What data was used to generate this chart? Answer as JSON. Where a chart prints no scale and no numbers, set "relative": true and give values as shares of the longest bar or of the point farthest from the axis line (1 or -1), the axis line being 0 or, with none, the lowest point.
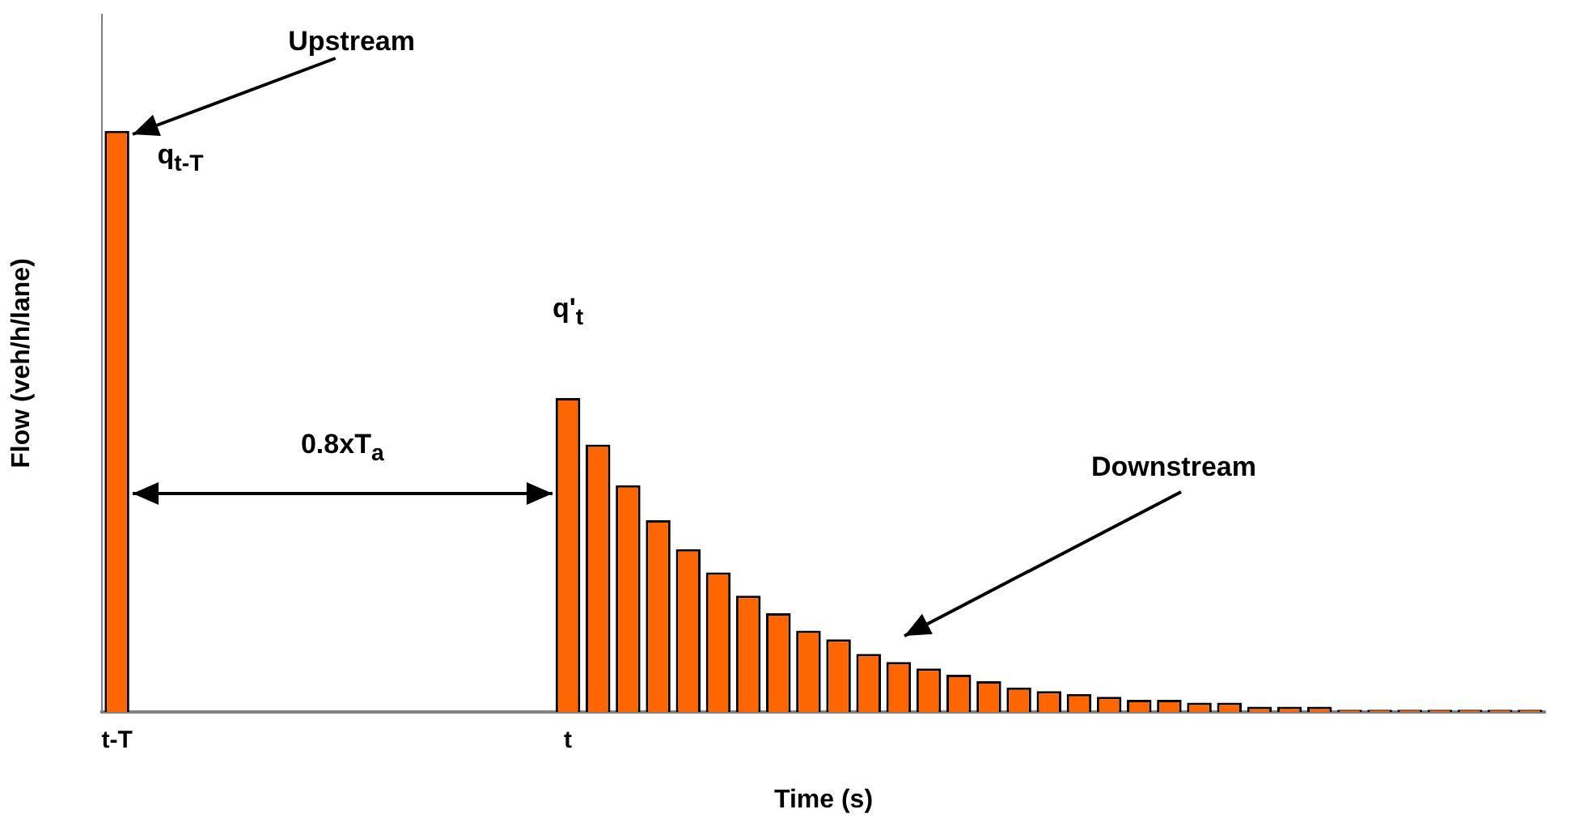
{
  "chart_data": {
    "type": "bar",
    "relative": true,
    "xlabel": "Time (s)",
    "ylabel": "Flow (veh/h/lane)",
    "categories": [
      "t-T",
      null,
      null,
      null,
      null,
      null,
      null,
      null,
      null,
      null,
      null,
      null,
      null,
      null,
      null,
      "t",
      null,
      null,
      null,
      null,
      null,
      null,
      null,
      null,
      null,
      null,
      null,
      null,
      null,
      null,
      null,
      null,
      null,
      null,
      null,
      null,
      null,
      null,
      null,
      null,
      null,
      null,
      null,
      null,
      null,
      null,
      null,
      null
    ],
    "values": [
      1,
      null,
      null,
      null,
      null,
      null,
      null,
      null,
      null,
      null,
      null,
      null,
      null,
      null,
      null,
      0.54,
      0.46,
      0.39,
      0.33,
      0.28,
      0.24,
      0.2,
      0.17,
      0.14,
      0.125,
      0.1,
      0.086,
      0.075,
      0.064,
      0.053,
      0.042,
      0.036,
      0.031,
      0.026,
      0.021,
      0.021,
      0.016,
      0.016,
      0.009,
      0.009,
      0.009,
      0.004,
      0.004,
      0.004,
      0.004,
      0.004,
      0.004,
      0.004
    ],
    "color": "#ff6600",
    "annotations": [
      "Upstream",
      "q$_{t-T}$",
      "q'$_{t}$",
      "0.8xT$_{a}$",
      "Downstream"
    ],
    "grid": false,
    "legend": false
  }
}
